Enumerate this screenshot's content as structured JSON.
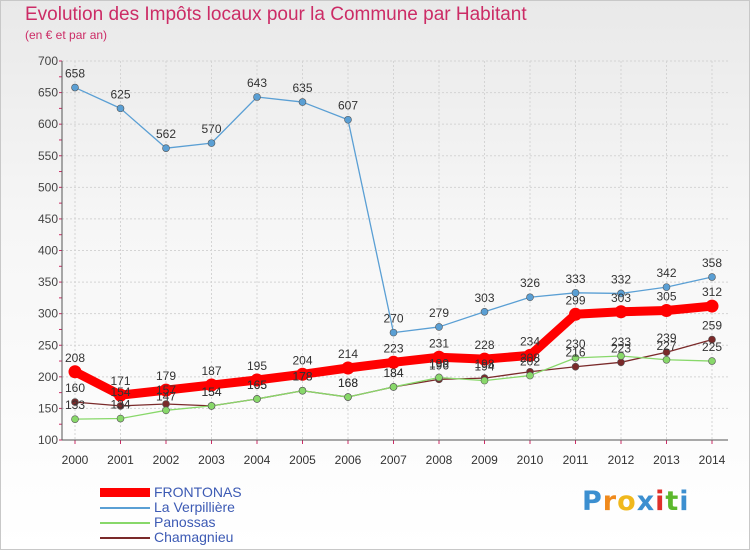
{
  "title": "Evolution des Impôts locaux pour la Commune par Habitant",
  "subtitle": "(en € et par an)",
  "brand": "Proxiti",
  "chart_data": {
    "type": "line",
    "title": "Evolution des Impôts locaux pour la Commune par Habitant",
    "ylabel": "(en € et par an)",
    "xlabel": "",
    "ylim": [
      100,
      700
    ],
    "yticks": [
      100,
      150,
      200,
      250,
      300,
      350,
      400,
      450,
      500,
      550,
      600,
      650,
      700
    ],
    "categories": [
      "2000",
      "2001",
      "2002",
      "2003",
      "2004",
      "2005",
      "2006",
      "2007",
      "2008",
      "2009",
      "2010",
      "2011",
      "2012",
      "2013",
      "2014"
    ],
    "grid": true,
    "legend_position": "bottom-left",
    "series": [
      {
        "name": "FRONTONAS",
        "color": "#ff0000",
        "values": [
          208,
          171,
          179,
          187,
          195,
          204,
          214,
          223,
          231,
          228,
          234,
          299,
          303,
          305,
          312
        ]
      },
      {
        "name": "La Verpillière",
        "color": "#5a9fd4",
        "values": [
          658,
          625,
          562,
          570,
          643,
          635,
          607,
          270,
          279,
          303,
          326,
          333,
          332,
          342,
          358
        ]
      },
      {
        "name": "Panossas",
        "color": "#88d86a",
        "values": [
          133,
          134,
          147,
          154,
          165,
          178,
          168,
          184,
          199,
          194,
          202,
          230,
          233,
          227,
          225
        ]
      },
      {
        "name": "Chamagnieu",
        "color": "#7a2a2a",
        "values": [
          160,
          154,
          157,
          154,
          165,
          178,
          168,
          184,
          196,
          198,
          208,
          216,
          223,
          239,
          259
        ]
      }
    ]
  }
}
